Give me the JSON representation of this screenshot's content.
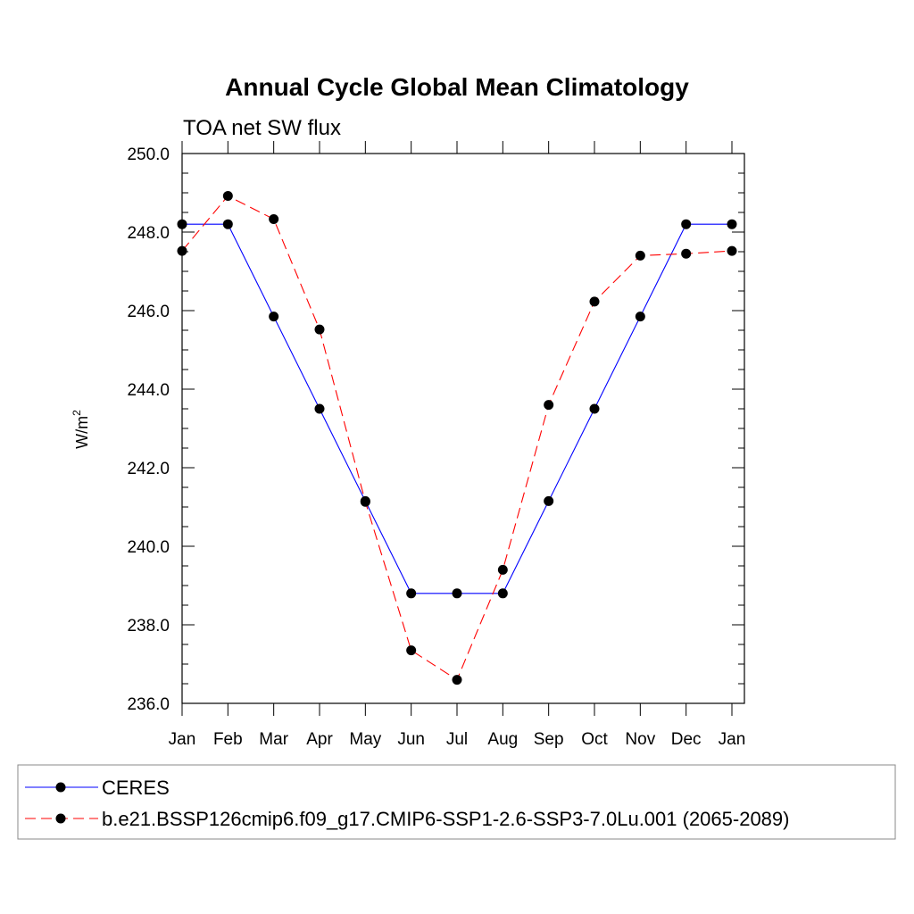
{
  "chart_data": {
    "type": "line",
    "title": "Annual Cycle Global Mean Climatology",
    "subtitle": "TOA net SW flux",
    "ylabel": "W/m",
    "ylabel_superscript": "2",
    "categories": [
      "Jan",
      "Feb",
      "Mar",
      "Apr",
      "May",
      "Jun",
      "Jul",
      "Aug",
      "Sep",
      "Oct",
      "Nov",
      "Dec",
      "Jan"
    ],
    "ylim": [
      236.0,
      250.0
    ],
    "y_ticks": [
      "236.0",
      "238.0",
      "240.0",
      "242.0",
      "244.0",
      "246.0",
      "248.0",
      "250.0"
    ],
    "grid": false,
    "legend_position": "bottom",
    "series": [
      {
        "name": "CERES",
        "color": "#0000ff",
        "dash": "solid",
        "values": [
          248.2,
          248.2,
          245.85,
          243.5,
          241.15,
          238.8,
          238.8,
          238.8,
          241.15,
          243.5,
          245.85,
          248.2,
          248.2
        ]
      },
      {
        "name": "b.e21.BSSP126cmip6.f09_g17.CMIP6-SSP1-2.6-SSP3-7.0Lu.001 (2065-2089)",
        "color": "#ff0000",
        "dash": "dashed",
        "values": [
          247.52,
          248.92,
          248.33,
          245.52,
          241.13,
          237.35,
          236.6,
          239.4,
          243.6,
          246.23,
          247.4,
          247.45,
          247.52
        ]
      }
    ]
  }
}
